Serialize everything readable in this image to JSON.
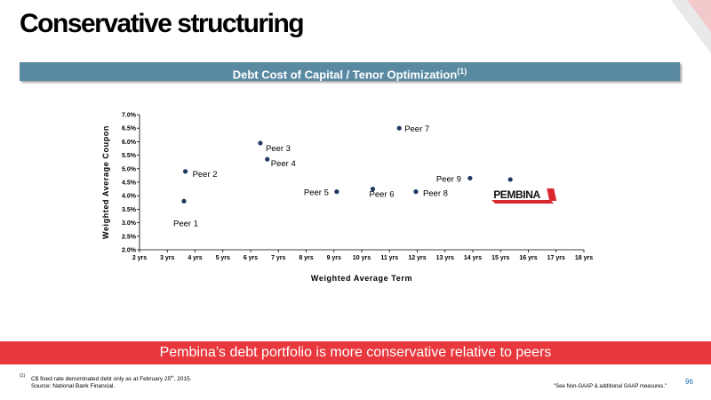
{
  "page": {
    "title": "Conservative structuring",
    "banner_title": "Debt Cost of Capital / Tenor Optimization",
    "banner_sup": "(1)",
    "conclusion": "Pembina’s debt portfolio is more conservative relative to peers",
    "footnote_marker": "(1)",
    "footnote_line1_a": "C$ fixed rate denominated debt only as at February 25",
    "footnote_line1_sup": "th",
    "footnote_line1_b": ", 2015.",
    "footnote_line2": "Source: National Bank Financial.",
    "non_gaap_note": "\"See Non-GAAP & additional GAAP measures.\"",
    "page_number": "96",
    "pembina_logo_text": "PEMBINA"
  },
  "colors": {
    "banner": "#5a8aa2",
    "conclusion_bar": "#e8383d",
    "points": "#1f3864",
    "page_number": "#1f6ea8",
    "pembina_red": "#d7282f"
  },
  "chart_data": {
    "type": "scatter",
    "xlabel": "Weighted Average Term",
    "ylabel": "Weighted Average Coupon",
    "xlim": [
      2,
      18
    ],
    "ylim": [
      2.0,
      7.0
    ],
    "x_ticks": [
      "2 yrs",
      "3 yrs",
      "4 yrs",
      "5 yrs",
      "6 yrs",
      "7 yrs",
      "8 yrs",
      "9 yrs",
      "10 yrs",
      "11 yrs",
      "12 yrs",
      "13 yrs",
      "14 yrs",
      "15 yrs",
      "16 yrs",
      "17 yrs",
      "18 yrs"
    ],
    "y_ticks": [
      "2.0%",
      "2.5%",
      "3.0%",
      "3.5%",
      "4.0%",
      "4.5%",
      "5.0%",
      "5.5%",
      "6.0%",
      "6.5%",
      "7.0%"
    ],
    "grid": false,
    "points": [
      {
        "label": "Peer 1",
        "x": 3.6,
        "y": 3.8
      },
      {
        "label": "Peer 2",
        "x": 3.65,
        "y": 4.9
      },
      {
        "label": "Peer 3",
        "x": 6.35,
        "y": 5.95
      },
      {
        "label": "Peer 4",
        "x": 6.6,
        "y": 5.35
      },
      {
        "label": "Peer 5",
        "x": 9.1,
        "y": 4.15
      },
      {
        "label": "Peer 6",
        "x": 10.4,
        "y": 4.25
      },
      {
        "label": "Peer 7",
        "x": 11.35,
        "y": 6.5
      },
      {
        "label": "Peer 8",
        "x": 11.95,
        "y": 4.15
      },
      {
        "label": "Peer 9",
        "x": 13.9,
        "y": 4.65
      },
      {
        "label": "Pembina",
        "x": 15.35,
        "y": 4.6
      }
    ]
  }
}
